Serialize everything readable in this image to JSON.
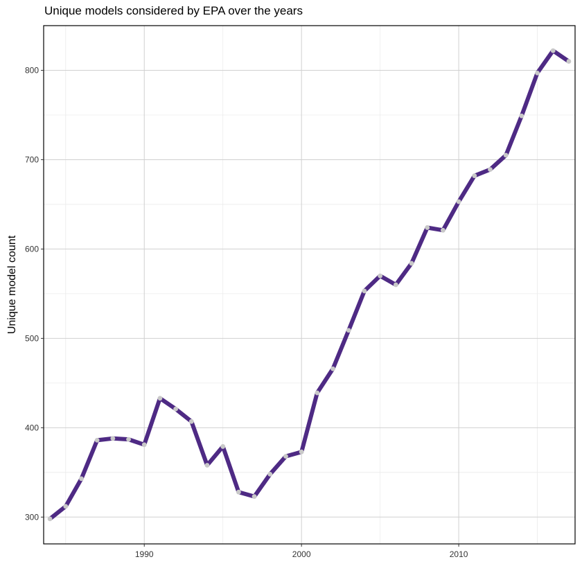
{
  "chart_data": {
    "type": "line",
    "title": "Unique models considered by EPA over the years",
    "xlabel": "",
    "ylabel": "Unique model count",
    "xlim": [
      1983.6,
      2017.4
    ],
    "ylim": [
      270,
      850
    ],
    "x_ticks": [
      1990,
      2000,
      2010
    ],
    "y_ticks": [
      300,
      400,
      500,
      600,
      700,
      800
    ],
    "grid": true,
    "line_color": "#4e2a84",
    "point_color": "#c8c8c8",
    "series": [
      {
        "x": [
          1984,
          1985,
          1986,
          1987,
          1988,
          1989,
          1990,
          1991,
          1992,
          1993,
          1994,
          1995,
          1996,
          1997,
          1998,
          1999,
          2000,
          2001,
          2002,
          2003,
          2004,
          2005,
          2006,
          2007,
          2008,
          2009,
          2010,
          2011,
          2012,
          2013,
          2014,
          2015,
          2016,
          2017
        ],
        "values": [
          298,
          312,
          343,
          386,
          388,
          387,
          381,
          433,
          421,
          407,
          358,
          379,
          328,
          323,
          348,
          368,
          373,
          439,
          466,
          509,
          553,
          570,
          560,
          584,
          624,
          621,
          653,
          682,
          689,
          705,
          749,
          797,
          822,
          810
        ]
      }
    ]
  }
}
